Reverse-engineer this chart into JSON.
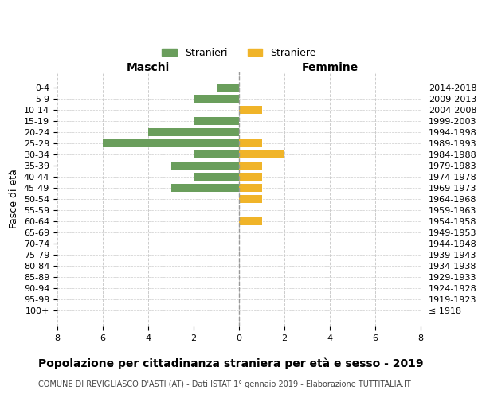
{
  "age_groups": [
    "100+",
    "95-99",
    "90-94",
    "85-89",
    "80-84",
    "75-79",
    "70-74",
    "65-69",
    "60-64",
    "55-59",
    "50-54",
    "45-49",
    "40-44",
    "35-39",
    "30-34",
    "25-29",
    "20-24",
    "15-19",
    "10-14",
    "5-9",
    "0-4"
  ],
  "birth_years": [
    "≤ 1918",
    "1919-1923",
    "1924-1928",
    "1929-1933",
    "1934-1938",
    "1939-1943",
    "1944-1948",
    "1949-1953",
    "1954-1958",
    "1959-1963",
    "1964-1968",
    "1969-1973",
    "1974-1978",
    "1979-1983",
    "1984-1988",
    "1989-1993",
    "1994-1998",
    "1999-2003",
    "2004-2008",
    "2009-2013",
    "2014-2018"
  ],
  "males": [
    0,
    0,
    0,
    0,
    0,
    0,
    0,
    0,
    0,
    0,
    0,
    3,
    2,
    3,
    2,
    6,
    4,
    2,
    0,
    2,
    1
  ],
  "females": [
    0,
    0,
    0,
    0,
    0,
    0,
    0,
    0,
    1,
    0,
    1,
    1,
    1,
    1,
    2,
    1,
    0,
    0,
    1,
    0,
    0
  ],
  "color_males": "#6a9e5c",
  "color_females": "#f0b429",
  "title": "Popolazione per cittadinanza straniera per età e sesso - 2019",
  "subtitle": "COMUNE DI REVIGLIASCO D'ASTI (AT) - Dati ISTAT 1° gennaio 2019 - Elaborazione TUTTITALIA.IT",
  "xlabel_left": "Maschi",
  "xlabel_right": "Femmine",
  "ylabel_left": "Fasce di età",
  "legend_males": "Stranieri",
  "legend_females": "Straniere",
  "xlim": 8,
  "background_color": "#ffffff",
  "grid_color": "#cccccc"
}
